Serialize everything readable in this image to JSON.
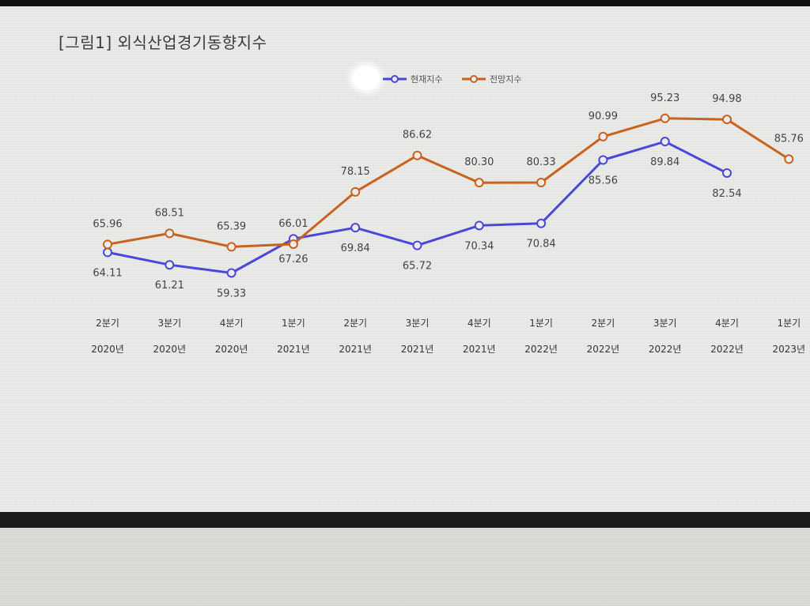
{
  "title": "[그림1] 외식산업경기동향지수",
  "chart_data": {
    "type": "line",
    "title": "[그림1] 외식산업경기동향지수",
    "legend_position": "top-center",
    "categories": [
      [
        "2분기",
        "2020년"
      ],
      [
        "3분기",
        "2020년"
      ],
      [
        "4분기",
        "2020년"
      ],
      [
        "1분기",
        "2021년"
      ],
      [
        "2분기",
        "2021년"
      ],
      [
        "3분기",
        "2021년"
      ],
      [
        "4분기",
        "2021년"
      ],
      [
        "1분기",
        "2022년"
      ],
      [
        "2분기",
        "2022년"
      ],
      [
        "3분기",
        "2022년"
      ],
      [
        "4분기",
        "2022년"
      ],
      [
        "1분기",
        "2023년"
      ]
    ],
    "series": [
      {
        "name": "현재지수",
        "color": "#4a48d8",
        "values": [
          64.11,
          61.21,
          59.33,
          67.26,
          69.84,
          65.72,
          70.34,
          70.84,
          85.56,
          89.84,
          82.54,
          null
        ],
        "labels": [
          "64.11",
          "61.21",
          "59.33",
          "67.26",
          "69.84",
          "65.72",
          "70.34",
          "70.84",
          "85.56",
          "89.84",
          "82.54",
          ""
        ]
      },
      {
        "name": "전망지수",
        "color": "#c8621e",
        "values": [
          65.96,
          68.51,
          65.39,
          66.01,
          78.15,
          86.62,
          80.3,
          80.33,
          90.99,
          95.23,
          94.98,
          85.76
        ],
        "labels": [
          "65.96",
          "68.51",
          "65.39",
          "66.01",
          "78.15",
          "86.62",
          "80.30",
          "80.33",
          "90.99",
          "95.23",
          "94.98",
          "85.76"
        ]
      }
    ],
    "grid": false
  }
}
